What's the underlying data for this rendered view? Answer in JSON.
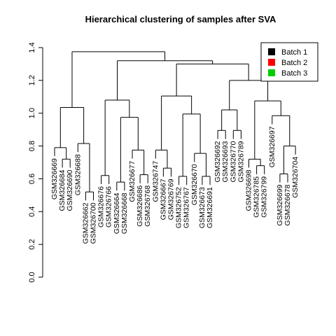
{
  "chart_data": {
    "type": "dendrogram",
    "title": "Hierarchical clustering of samples after SVA",
    "xlabel": "",
    "ylabel": "",
    "ylim": [
      0,
      1.4
    ],
    "yticks": [
      "0.0",
      "0.2",
      "0.4",
      "0.6",
      "0.8",
      "1.0",
      "1.2",
      "1.4"
    ],
    "leaves": [
      "GSM326669",
      "GSM326684",
      "GSM326690",
      "GSM326688",
      "GSM326662",
      "GSM326700",
      "GSM326676",
      "GSM326766",
      "GSM326664",
      "GSM326668",
      "GSM326677",
      "GSM326686",
      "GSM326768",
      "GSM326747",
      "GSM326667",
      "GSM326769",
      "GSM326752",
      "GSM326767",
      "GSM326670",
      "GSM326673",
      "GSM326691",
      "GSM326692",
      "GSM326693",
      "GSM326770",
      "GSM326789",
      "GSM326698",
      "GSM326785",
      "GSM326799",
      "GSM326697",
      "GSM326699",
      "GSM326678",
      "GSM326704"
    ],
    "merges": [
      {
        "left": 2,
        "right": 3,
        "height": 0.72
      },
      {
        "left": 1,
        "right": 33,
        "height": 0.79
      },
      {
        "left": 5,
        "right": 6,
        "height": 0.52
      },
      {
        "left": 4,
        "right": 35,
        "height": 0.815
      },
      {
        "left": 34,
        "right": 36,
        "height": 1.035
      },
      {
        "left": 7,
        "right": 8,
        "height": 0.62
      },
      {
        "left": 9,
        "right": 10,
        "height": 0.58
      },
      {
        "left": 12,
        "right": 13,
        "height": 0.625
      },
      {
        "left": 11,
        "right": 40,
        "height": 0.775
      },
      {
        "left": 39,
        "right": 41,
        "height": 0.975
      },
      {
        "left": 38,
        "right": 42,
        "height": 1.08
      },
      {
        "left": 15,
        "right": 16,
        "height": 0.665
      },
      {
        "left": 14,
        "right": 44,
        "height": 0.775
      },
      {
        "left": 17,
        "right": 18,
        "height": 0.615
      },
      {
        "left": 20,
        "right": 21,
        "height": 0.615
      },
      {
        "left": 19,
        "right": 47,
        "height": 0.755
      },
      {
        "left": 46,
        "right": 48,
        "height": 0.995
      },
      {
        "left": 45,
        "right": 49,
        "height": 1.105
      },
      {
        "left": 22,
        "right": 23,
        "height": 0.895
      },
      {
        "left": 24,
        "right": 25,
        "height": 0.895
      },
      {
        "left": 51,
        "right": 52,
        "height": 1.02
      },
      {
        "left": 27,
        "right": 28,
        "height": 0.68
      },
      {
        "left": 26,
        "right": 54,
        "height": 0.72
      },
      {
        "left": 30,
        "right": 31,
        "height": 0.63
      },
      {
        "left": 32,
        "right": 56,
        "height": 0.8
      },
      {
        "left": 29,
        "right": 57,
        "height": 0.985
      },
      {
        "left": 55,
        "right": 58,
        "height": 1.075
      },
      {
        "left": 53,
        "right": 59,
        "height": 1.2
      },
      {
        "left": 50,
        "right": 60,
        "height": 1.3
      },
      {
        "left": 43,
        "right": 61,
        "height": 1.32
      },
      {
        "left": 37,
        "right": 62,
        "height": 1.375
      }
    ],
    "legend": {
      "position": "top-right",
      "entries": [
        {
          "label": "Batch 1",
          "color": "#000000"
        },
        {
          "label": "Batch 2",
          "color": "#ff0000"
        },
        {
          "label": "Batch 3",
          "color": "#00cd00"
        }
      ]
    }
  }
}
